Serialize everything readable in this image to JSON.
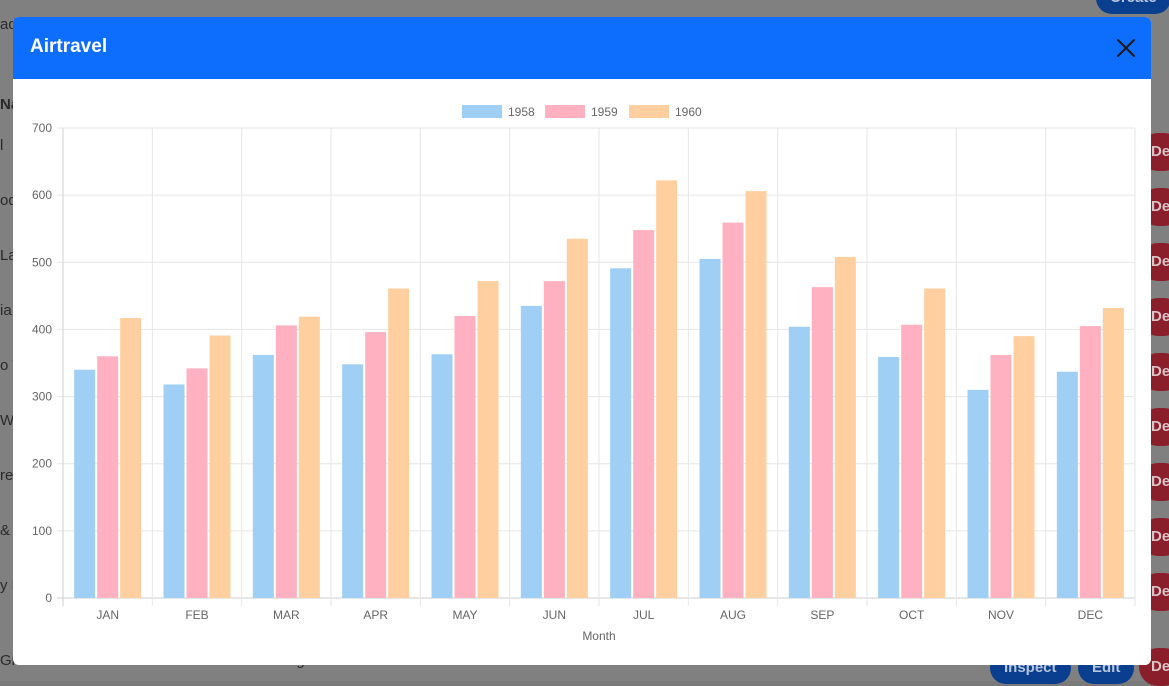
{
  "background": {
    "rows": [
      {
        "text": "l"
      },
      {
        "text": "od"
      },
      {
        "text": "La"
      },
      {
        "text": "ia"
      },
      {
        "text": "o V"
      },
      {
        "text": "We"
      },
      {
        "text": "re"
      },
      {
        "text": "& L"
      },
      {
        "text": "y L"
      }
    ],
    "column_header": "Na",
    "header_fragment": "ad",
    "create_button": "Create",
    "delete_label": "De",
    "last_row": {
      "name": "Grades",
      "description": "tracks the test result grades of a set of students.",
      "inspect": "Inspect",
      "edit": "Edit"
    }
  },
  "modal": {
    "title": "Airtravel"
  },
  "colors": {
    "header": "#0d6efd",
    "s1958_fill": "#9fcff5",
    "s1959_fill": "#ffb1c1",
    "s1960_fill": "#ffcf9f"
  },
  "chart_data": {
    "type": "bar",
    "categories": [
      "JAN",
      "FEB",
      "MAR",
      "APR",
      "MAY",
      "JUN",
      "JUL",
      "AUG",
      "SEP",
      "OCT",
      "NOV",
      "DEC"
    ],
    "series": [
      {
        "name": "1958",
        "values": [
          340,
          318,
          362,
          348,
          363,
          435,
          491,
          505,
          404,
          359,
          310,
          337
        ]
      },
      {
        "name": "1959",
        "values": [
          360,
          342,
          406,
          396,
          420,
          472,
          548,
          559,
          463,
          407,
          362,
          405
        ]
      },
      {
        "name": "1960",
        "values": [
          417,
          391,
          419,
          461,
          472,
          535,
          622,
          606,
          508,
          461,
          390,
          432
        ]
      }
    ],
    "xlabel": "Month",
    "ylabel": "",
    "ylim": [
      0,
      700
    ],
    "yticks": [
      "0",
      "100",
      "200",
      "300",
      "400",
      "500",
      "600",
      "700"
    ],
    "grid": true,
    "legend": "top-center"
  }
}
